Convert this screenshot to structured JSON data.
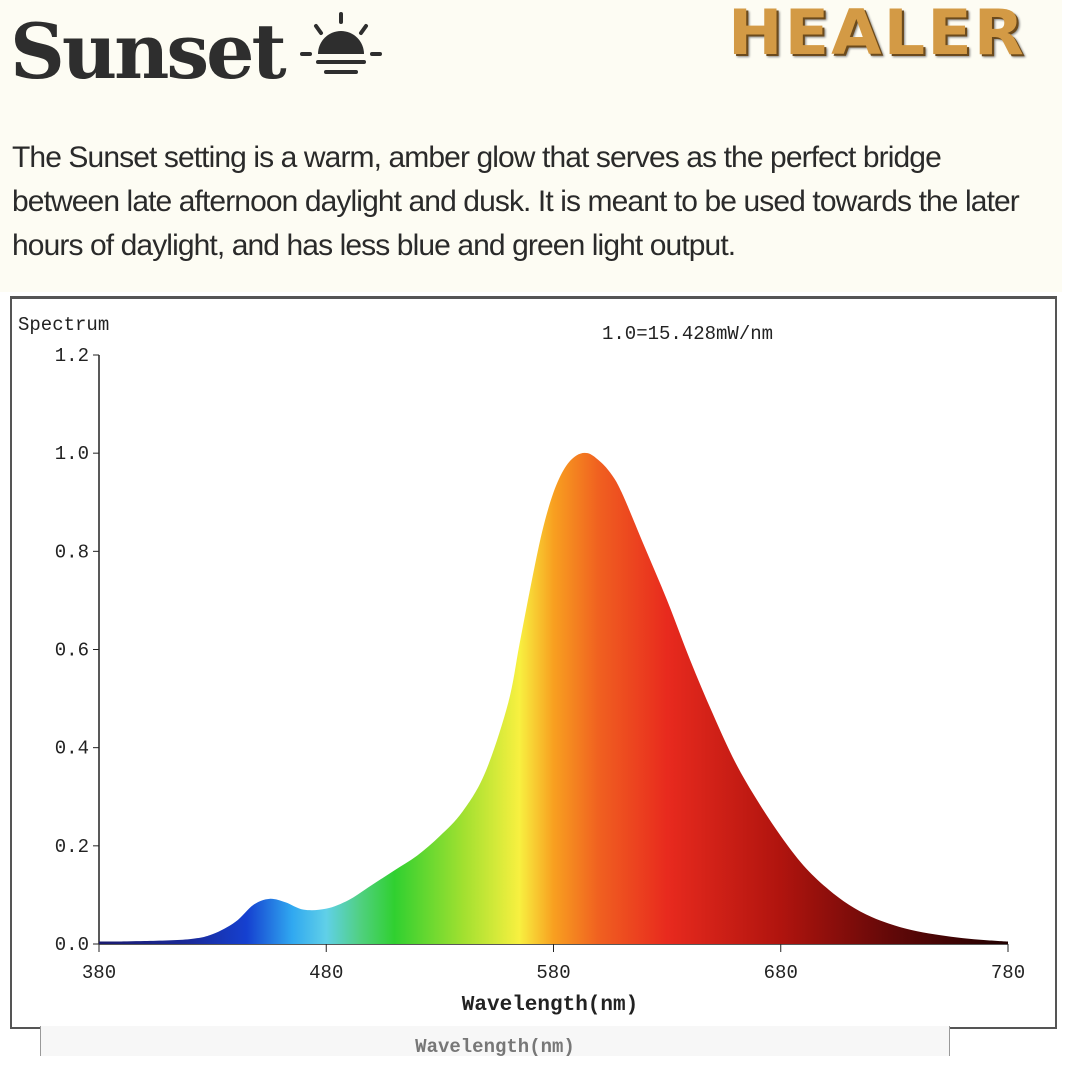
{
  "header": {
    "title": "Sunset",
    "icon": "sunset-icon",
    "brand": "HEALER",
    "brand_color": "#d39a45",
    "description": "The Sunset setting is a warm, amber glow that serves as the perfect bridge between late afternoon daylight and dusk. It is meant to be used towards the later hours of daylight, and has less blue and green light output."
  },
  "chart_data": {
    "type": "area",
    "title": "Spectrum",
    "annotation": "1.0=15.428mW/nm",
    "xlabel": "Wavelength(nm)",
    "ylabel": "",
    "xlim": [
      380,
      780
    ],
    "ylim": [
      0,
      1.2
    ],
    "xticks": [
      "380",
      "480",
      "580",
      "680",
      "780"
    ],
    "yticks": [
      "0.0",
      "0.2",
      "0.4",
      "0.6",
      "0.8",
      "1.0",
      "1.2"
    ],
    "grid": false,
    "fill": "visible-spectrum color gradient by wavelength",
    "x": [
      380,
      400,
      420,
      430,
      440,
      448,
      455,
      462,
      470,
      480,
      490,
      500,
      510,
      520,
      530,
      540,
      550,
      560,
      565,
      570,
      575,
      580,
      585,
      590,
      595,
      600,
      605,
      610,
      620,
      630,
      640,
      650,
      660,
      670,
      680,
      690,
      700,
      710,
      720,
      730,
      740,
      750,
      760,
      770,
      780
    ],
    "y": [
      0.005,
      0.006,
      0.01,
      0.02,
      0.045,
      0.08,
      0.092,
      0.085,
      0.07,
      0.072,
      0.09,
      0.12,
      0.15,
      0.18,
      0.22,
      0.27,
      0.35,
      0.49,
      0.61,
      0.73,
      0.84,
      0.92,
      0.97,
      0.995,
      1.0,
      0.985,
      0.96,
      0.92,
      0.81,
      0.7,
      0.58,
      0.47,
      0.37,
      0.29,
      0.22,
      0.16,
      0.115,
      0.08,
      0.055,
      0.038,
      0.026,
      0.018,
      0.012,
      0.008,
      0.005
    ]
  },
  "footer": {
    "cropped_label": "Wavelength(nm)"
  }
}
